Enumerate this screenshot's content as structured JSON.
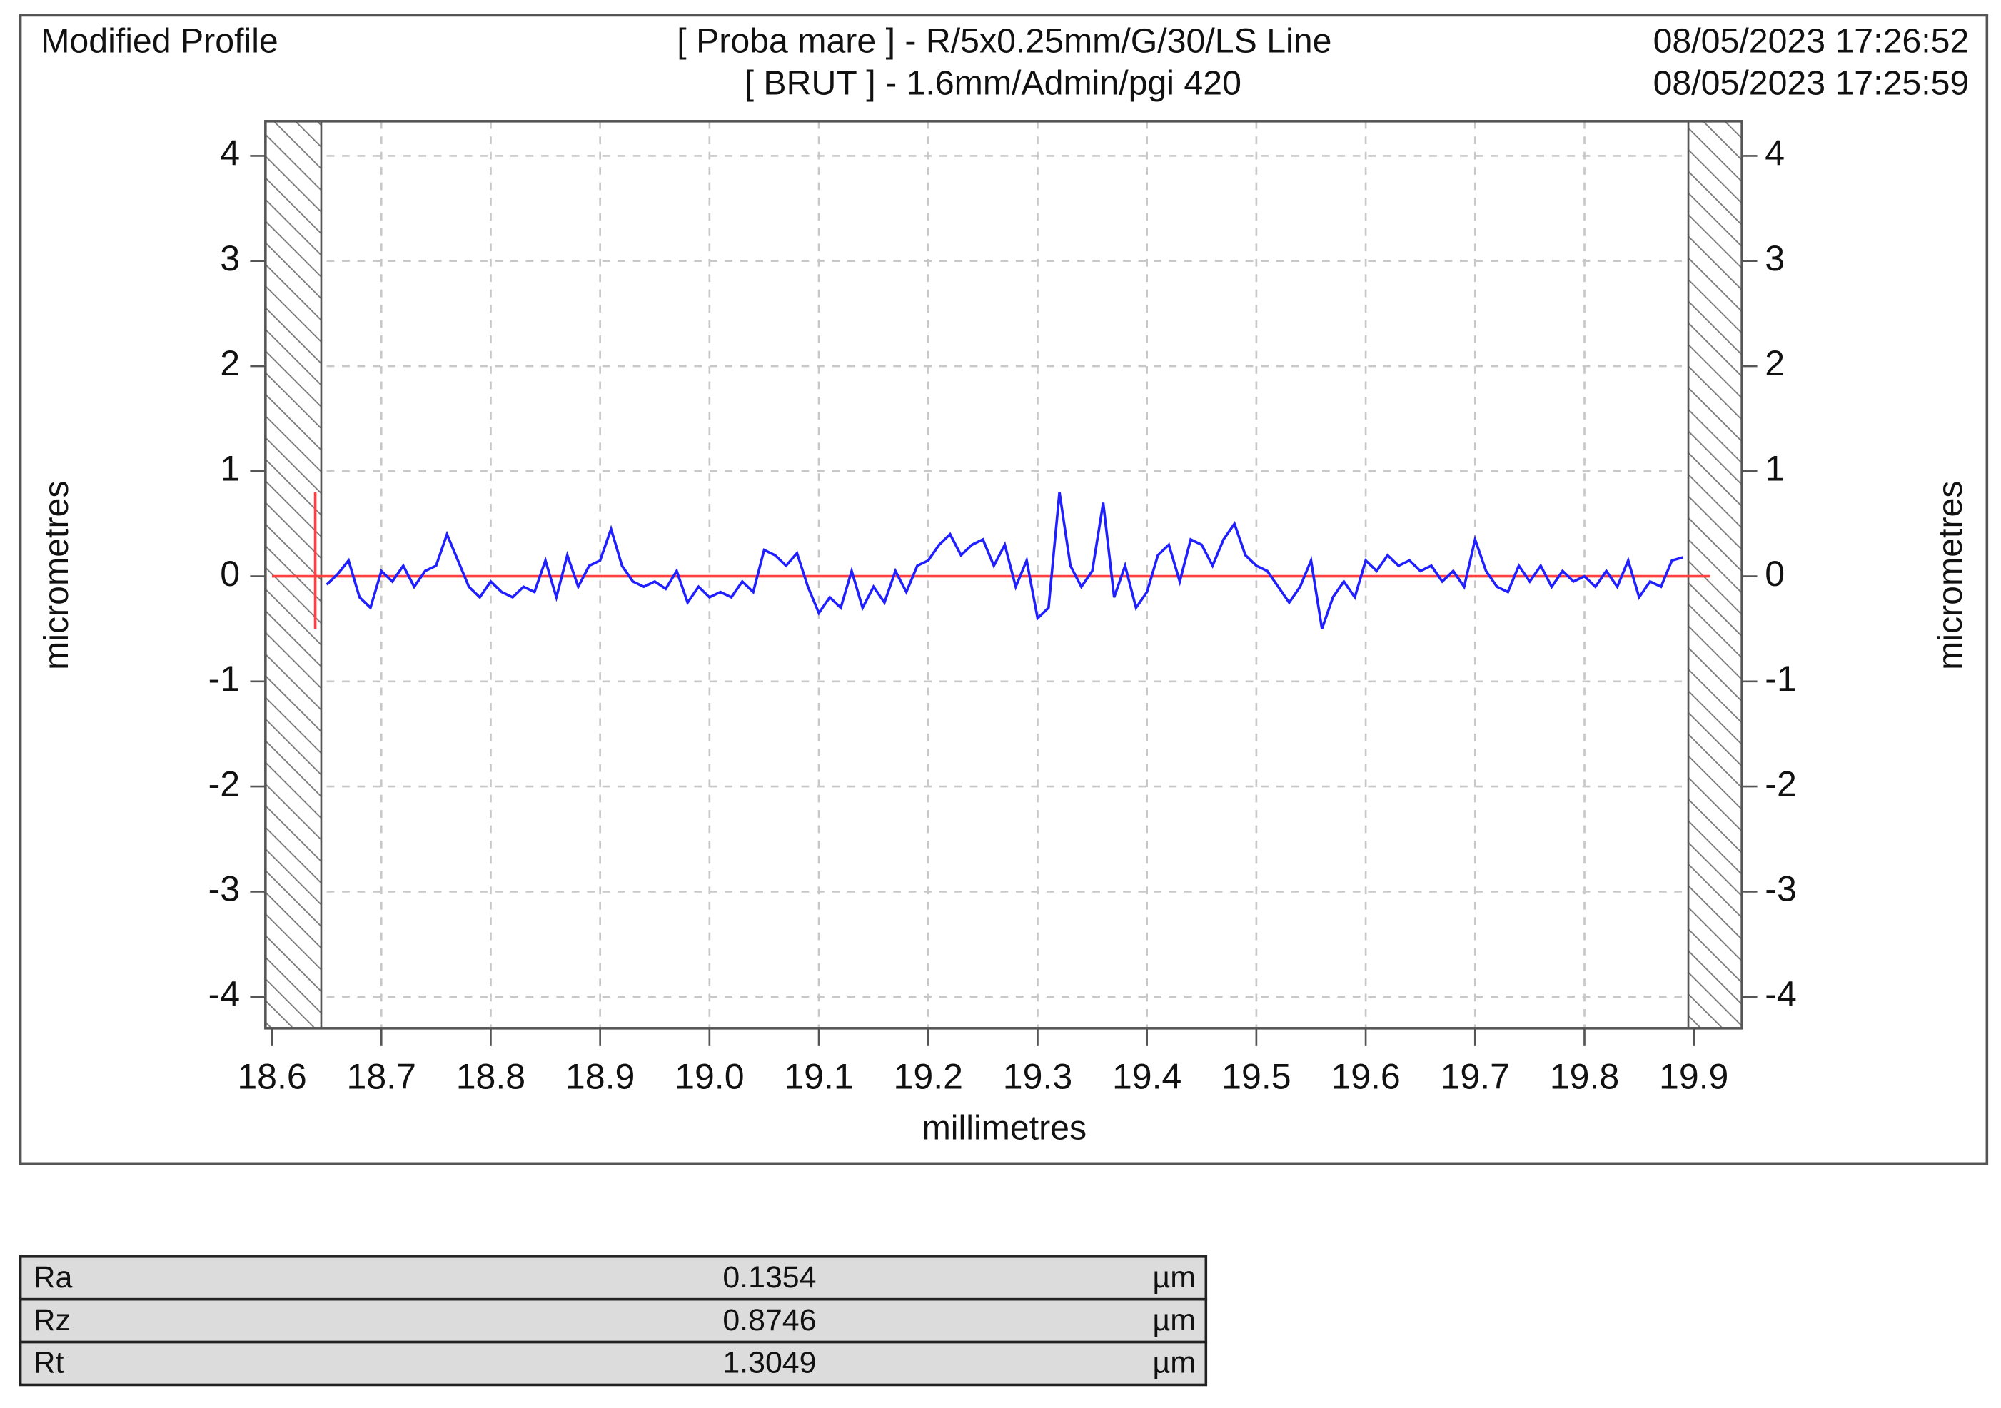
{
  "chart_data": {
    "type": "line",
    "title": "Modified Profile",
    "subtitle": [
      "[ Proba mare ] - R/5x0.25mm/G/30/LS Line",
      "[ BRUT ] - 1.6mm/Admin/pgi 420"
    ],
    "timestamps": [
      "08/05/2023 17:26:52",
      "08/05/2023 17:25:59"
    ],
    "x_label": "millimetres",
    "y_label": "micrometres",
    "xlim": [
      18.594,
      19.944
    ],
    "ylim": [
      -4.3,
      4.33
    ],
    "xticks": [
      18.6,
      18.7,
      18.8,
      18.9,
      {
        "value": 19,
        "label": "19.0"
      },
      19.1,
      19.2,
      19.3,
      19.4,
      19.5,
      19.6,
      19.7,
      19.8,
      19.9
    ],
    "yticks": [
      -4,
      -3,
      -2,
      -1,
      0,
      1,
      2,
      3,
      4
    ],
    "grid": true,
    "excluded": [
      [
        18.594,
        18.645
      ],
      [
        19.895,
        19.944
      ]
    ],
    "reference_line": {
      "value": 0,
      "x": [
        18.6,
        19.915
      ],
      "color": "#ff4040"
    },
    "cursor": {
      "x": 18.6395,
      "y": [
        -0.5,
        0.8
      ],
      "color": "#ff4040"
    },
    "x": [
      18.65,
      18.66,
      18.67,
      18.68,
      18.69,
      18.7,
      18.71,
      18.72,
      18.73,
      18.74,
      18.75,
      18.76,
      18.77,
      18.78,
      18.79,
      18.8,
      18.81,
      18.82,
      18.83,
      18.84,
      18.85,
      18.86,
      18.87,
      18.88,
      18.89,
      18.9,
      18.91,
      18.92,
      18.93,
      18.94,
      18.95,
      18.96,
      18.97,
      18.98,
      18.99,
      19.0,
      19.01,
      19.02,
      19.03,
      19.04,
      19.05,
      19.06,
      19.07,
      19.08,
      19.09,
      19.1,
      19.11,
      19.12,
      19.13,
      19.14,
      19.15,
      19.16,
      19.17,
      19.18,
      19.19,
      19.2,
      19.21,
      19.22,
      19.23,
      19.24,
      19.25,
      19.26,
      19.27,
      19.28,
      19.29,
      19.3,
      19.31,
      19.32,
      19.33,
      19.34,
      19.35,
      19.36,
      19.37,
      19.38,
      19.39,
      19.4,
      19.41,
      19.42,
      19.43,
      19.44,
      19.45,
      19.46,
      19.47,
      19.48,
      19.49,
      19.5,
      19.51,
      19.52,
      19.53,
      19.54,
      19.55,
      19.56,
      19.57,
      19.58,
      19.59,
      19.6,
      19.61,
      19.62,
      19.63,
      19.64,
      19.65,
      19.66,
      19.67,
      19.68,
      19.69,
      19.7,
      19.71,
      19.72,
      19.73,
      19.74,
      19.75,
      19.76,
      19.77,
      19.78,
      19.79,
      19.8,
      19.81,
      19.82,
      19.83,
      19.84,
      19.85,
      19.86,
      19.87,
      19.88,
      19.89
    ],
    "series": [
      {
        "color": "#1f1fff",
        "values": [
          -0.08,
          0.02,
          0.15,
          -0.2,
          -0.3,
          0.05,
          -0.05,
          0.1,
          -0.1,
          0.05,
          0.1,
          0.4,
          0.15,
          -0.1,
          -0.2,
          -0.05,
          -0.15,
          -0.2,
          -0.1,
          -0.15,
          0.15,
          -0.2,
          0.2,
          -0.1,
          0.1,
          0.15,
          0.45,
          0.1,
          -0.05,
          -0.1,
          -0.05,
          -0.12,
          0.05,
          -0.25,
          -0.1,
          -0.2,
          -0.15,
          -0.2,
          -0.05,
          -0.15,
          0.25,
          0.2,
          0.1,
          0.22,
          -0.1,
          -0.35,
          -0.2,
          -0.3,
          0.05,
          -0.3,
          -0.1,
          -0.25,
          0.05,
          -0.15,
          0.1,
          0.15,
          0.3,
          0.4,
          0.2,
          0.3,
          0.35,
          0.1,
          0.3,
          -0.1,
          0.15,
          -0.4,
          -0.3,
          0.8,
          0.1,
          -0.1,
          0.05,
          0.7,
          -0.2,
          0.1,
          -0.3,
          -0.15,
          0.2,
          0.3,
          -0.05,
          0.35,
          0.3,
          0.1,
          0.35,
          0.5,
          0.2,
          0.1,
          0.05,
          -0.1,
          -0.25,
          -0.1,
          0.15,
          -0.5,
          -0.2,
          -0.05,
          -0.2,
          0.15,
          0.05,
          0.2,
          0.1,
          0.15,
          0.05,
          0.1,
          -0.05,
          0.05,
          -0.1,
          0.35,
          0.05,
          -0.1,
          -0.15,
          0.1,
          -0.05,
          0.1,
          -0.1,
          0.05,
          -0.05,
          0,
          -0.1,
          0.05,
          -0.1,
          0.15,
          -0.2,
          -0.05,
          -0.1,
          0.15,
          0.18
        ]
      }
    ]
  },
  "table": {
    "rows": [
      [
        "Ra",
        "0.1354",
        "µm"
      ],
      [
        "Rz",
        "0.8746",
        "µm"
      ],
      [
        "Rt",
        "1.3049",
        "µm"
      ]
    ]
  }
}
